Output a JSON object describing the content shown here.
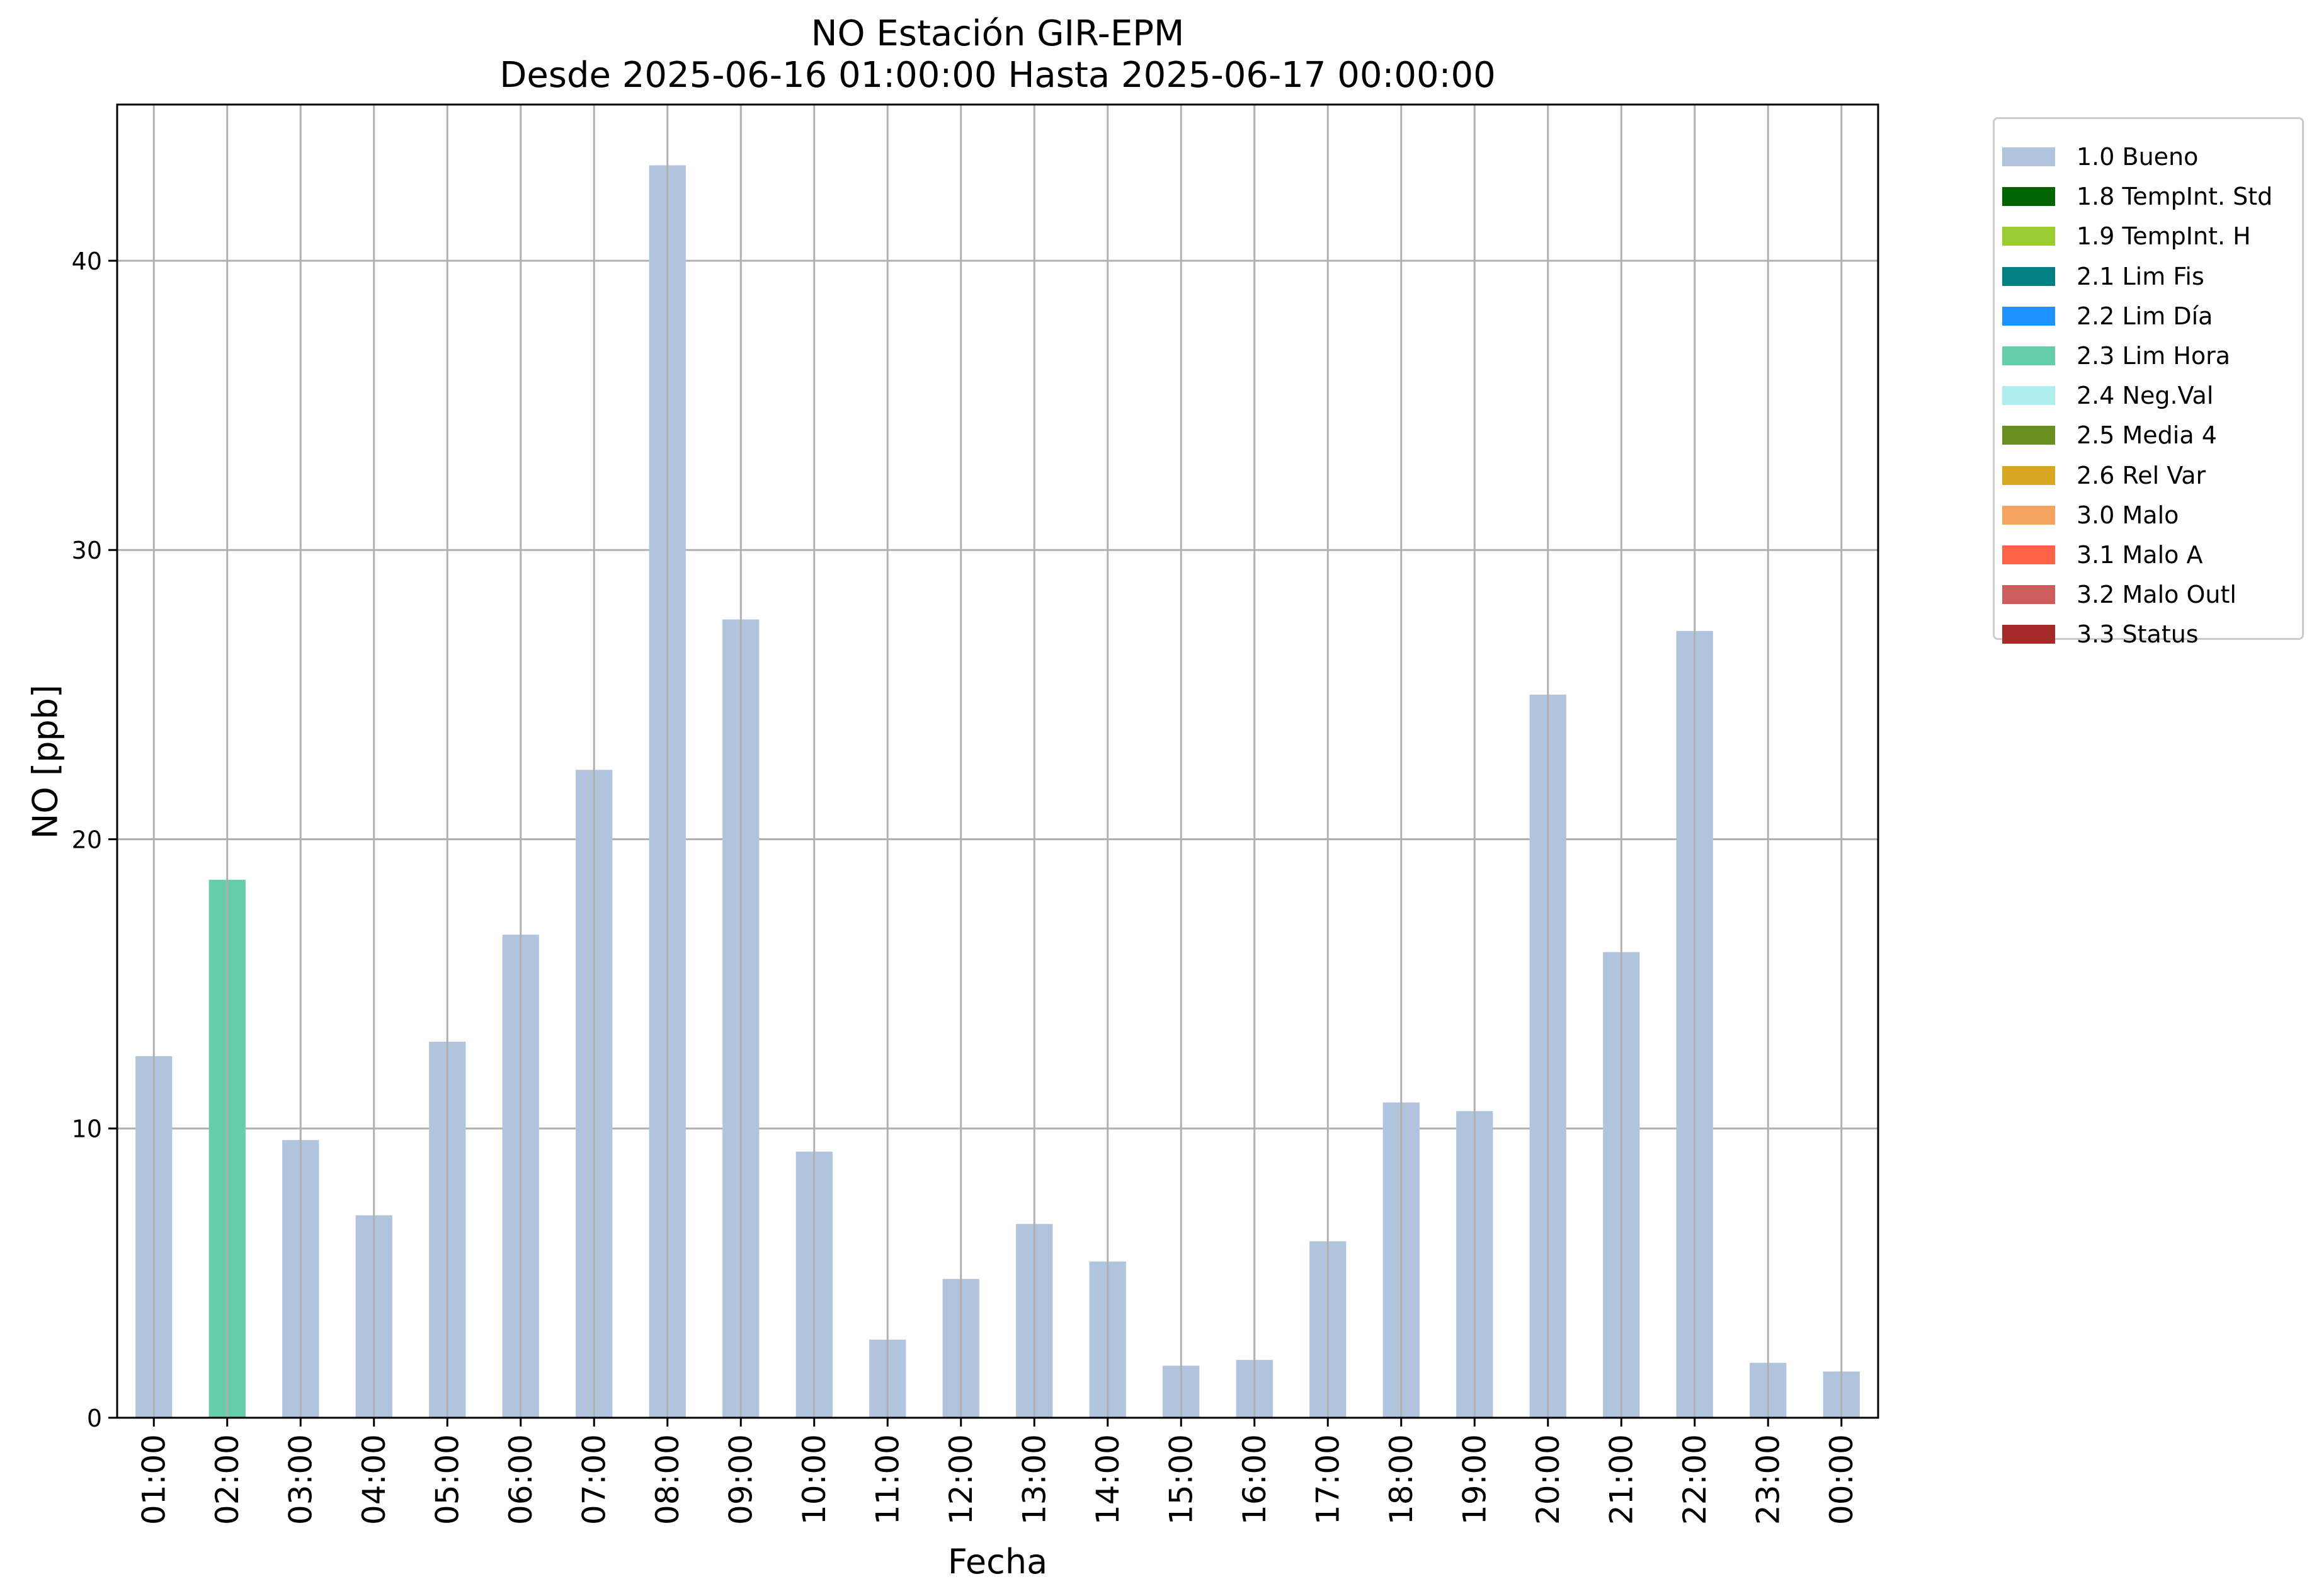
{
  "chart_data": {
    "type": "bar",
    "title": "NO Estación GIR-EPM",
    "subtitle": "Desde 2025-06-16 01:00:00 Hasta 2025-06-17 00:00:00",
    "xlabel": "Fecha",
    "ylabel": "NO [ppb]",
    "ylim": [
      0,
      45.4
    ],
    "yticks": [
      0,
      10,
      20,
      30,
      40
    ],
    "grid": true,
    "legend_position": "outside-top-right",
    "categories": [
      "01:00",
      "02:00",
      "03:00",
      "04:00",
      "05:00",
      "06:00",
      "07:00",
      "08:00",
      "09:00",
      "10:00",
      "11:00",
      "12:00",
      "13:00",
      "14:00",
      "15:00",
      "16:00",
      "17:00",
      "18:00",
      "19:00",
      "20:00",
      "21:00",
      "22:00",
      "23:00",
      "00:00"
    ],
    "values": [
      12.5,
      18.6,
      9.6,
      7.0,
      13.0,
      16.7,
      22.4,
      43.3,
      27.6,
      9.2,
      2.7,
      4.8,
      6.7,
      5.4,
      1.8,
      2.0,
      6.1,
      10.9,
      10.6,
      25.0,
      16.1,
      27.2,
      1.9,
      1.6
    ],
    "bar_flags": [
      "1.0 Bueno",
      "2.3 Lim Hora",
      "1.0 Bueno",
      "1.0 Bueno",
      "1.0 Bueno",
      "1.0 Bueno",
      "1.0 Bueno",
      "1.0 Bueno",
      "1.0 Bueno",
      "1.0 Bueno",
      "1.0 Bueno",
      "1.0 Bueno",
      "1.0 Bueno",
      "1.0 Bueno",
      "1.0 Bueno",
      "1.0 Bueno",
      "1.0 Bueno",
      "1.0 Bueno",
      "1.0 Bueno",
      "1.0 Bueno",
      "1.0 Bueno",
      "1.0 Bueno",
      "1.0 Bueno",
      "1.0 Bueno"
    ],
    "legend": [
      {
        "label": "1.0 Bueno",
        "color": "#b0c4de"
      },
      {
        "label": "1.8 TempInt. Std",
        "color": "#006400"
      },
      {
        "label": "1.9 TempInt. H",
        "color": "#9acd32"
      },
      {
        "label": "2.1 Lim Fis",
        "color": "#008080"
      },
      {
        "label": "2.2 Lim Día",
        "color": "#1e90ff"
      },
      {
        "label": "2.3 Lim Hora",
        "color": "#66cdaa"
      },
      {
        "label": "2.4 Neg.Val",
        "color": "#afeeee"
      },
      {
        "label": "2.5 Media 4",
        "color": "#6b8e23"
      },
      {
        "label": "2.6 Rel Var",
        "color": "#daa520"
      },
      {
        "label": "3.0 Malo",
        "color": "#f4a460"
      },
      {
        "label": "3.1 Malo A",
        "color": "#ff6347"
      },
      {
        "label": "3.2 Malo Outl",
        "color": "#cd5c5c"
      },
      {
        "label": "3.3 Status",
        "color": "#a52a2a"
      }
    ]
  }
}
